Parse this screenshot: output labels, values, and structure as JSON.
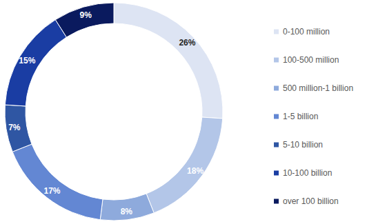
{
  "chart_data": {
    "type": "pie",
    "categories": [
      "0-100 million",
      "100-500 million",
      "500 million-1 billion",
      "1-5 billion",
      "5-10 billion",
      "10-100 billion",
      "over 100 billion"
    ],
    "values": [
      26,
      18,
      8,
      17,
      7,
      15,
      9
    ],
    "value_labels": [
      "26%",
      "18%",
      "8%",
      "17%",
      "7%",
      "15%",
      "9%"
    ],
    "colors": [
      "#dde4f3",
      "#b3c6e8",
      "#8eaadc",
      "#6387d3",
      "#2f56a3",
      "#1a3da3",
      "#0a1a5e"
    ],
    "data_labels": true,
    "legend": "right"
  }
}
